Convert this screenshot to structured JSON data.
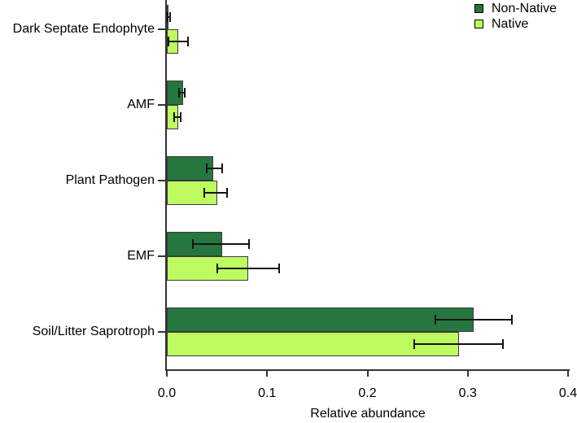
{
  "chart_data": {
    "type": "bar",
    "orientation": "horizontal",
    "title": "",
    "xlabel": "Relative abundance",
    "ylabel": "",
    "xlim": [
      0,
      0.4
    ],
    "xticks": [
      0,
      0.1,
      0.2,
      0.3,
      0.4
    ],
    "xtick_labels": [
      "0.0",
      "0.1",
      "0.2",
      "0.3",
      "0.4"
    ],
    "categories": [
      "Dark Septate Endophyte",
      "AMF",
      "Plant Pathogen",
      "EMF",
      "Soil/Litter Saprotroph"
    ],
    "series": [
      {
        "name": "Non-Native",
        "color": "#26763F",
        "values": [
          0.002,
          0.016,
          0.046,
          0.055,
          0.306
        ],
        "error_low": [
          0.001,
          0.012,
          0.04,
          0.026,
          0.268
        ],
        "error_high": [
          0.003,
          0.018,
          0.055,
          0.082,
          0.344
        ]
      },
      {
        "name": "Native",
        "color": "#BDFB60",
        "values": [
          0.011,
          0.011,
          0.05,
          0.081,
          0.291
        ],
        "error_low": [
          0.002,
          0.007,
          0.037,
          0.05,
          0.247
        ],
        "error_high": [
          0.021,
          0.014,
          0.06,
          0.112,
          0.335
        ]
      }
    ],
    "legend": {
      "position": "top-right",
      "entries": [
        "Non-Native",
        "Native"
      ]
    },
    "grid": false,
    "colors": {
      "bar_border": "#3a3a3a",
      "error_bar": "#141414",
      "axis": "#333333",
      "text": "#000000",
      "background": "#ffffff"
    }
  }
}
